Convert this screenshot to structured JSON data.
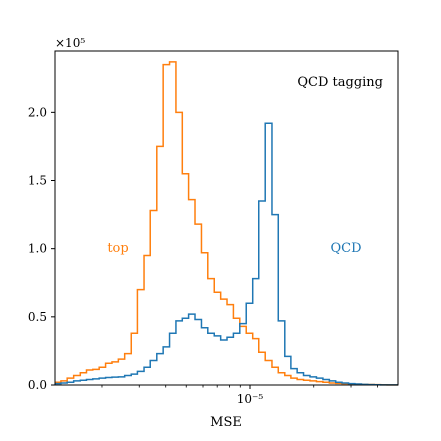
{
  "chart_data": {
    "type": "step-histogram",
    "title": "",
    "xlabel": "MSE",
    "ylabel": "",
    "y_scale_label": "×10⁵",
    "x_scale": "log",
    "xlim": [
      1.2e-06,
      5e-05
    ],
    "ylim": [
      0,
      245000
    ],
    "grid": false,
    "legend": "none",
    "annotations": {
      "panel_label": "QCD tagging",
      "top_label": "top",
      "qcd_label": "QCD"
    },
    "x_ticks": [
      {
        "value": 1e-05,
        "label": "10⁻⁵"
      }
    ],
    "y_ticks": [
      {
        "value": 0,
        "label": "0.0"
      },
      {
        "value": 50000,
        "label": "0.5"
      },
      {
        "value": 100000,
        "label": "1.0"
      },
      {
        "value": 150000,
        "label": "1.5"
      },
      {
        "value": 200000,
        "label": "2.0"
      }
    ],
    "bin_edges": [
      1.2e-06,
      1.28e-06,
      1.37e-06,
      1.47e-06,
      1.58e-06,
      1.69e-06,
      1.81e-06,
      1.94e-06,
      2.08e-06,
      2.23e-06,
      2.39e-06,
      2.56e-06,
      2.75e-06,
      2.94e-06,
      3.16e-06,
      3.38e-06,
      3.63e-06,
      3.89e-06,
      4.17e-06,
      4.47e-06,
      4.79e-06,
      5.13e-06,
      5.5e-06,
      5.9e-06,
      6.32e-06,
      6.78e-06,
      7.27e-06,
      7.79e-06,
      8.35e-06,
      8.95e-06,
      9.6e-06,
      1.03e-05,
      1.1e-05,
      1.18e-05,
      1.27e-05,
      1.36e-05,
      1.46e-05,
      1.56e-05,
      1.67e-05,
      1.79e-05,
      1.92e-05,
      2.06e-05,
      2.21e-05,
      2.37e-05,
      2.54e-05,
      2.72e-05,
      2.92e-05,
      3.13e-05,
      3.36e-05,
      3.6e-05,
      3.86e-05,
      4.14e-05,
      4.44e-05,
      4.76e-05,
      5e-05
    ],
    "series": [
      {
        "name": "",
        "color": "#ff7f0e",
        "values": [
          2000,
          3000,
          5000,
          7000,
          9000,
          11000,
          11500,
          13000,
          16000,
          17000,
          19000,
          23000,
          38000,
          70000,
          95000,
          128000,
          175000,
          235000,
          237000,
          200000,
          155000,
          136000,
          118000,
          97000,
          78000,
          68000,
          63000,
          59000,
          49000,
          43000,
          38000,
          34000,
          24000,
          18000,
          13000,
          9000,
          7000,
          5000,
          4000,
          3500,
          3000,
          2500,
          2000,
          1500,
          1200,
          1000,
          800,
          600,
          500,
          400,
          300,
          200,
          100,
          50
        ]
      },
      {
        "name": "",
        "color": "#1f77b4",
        "values": [
          1000,
          1500,
          2000,
          3000,
          3500,
          4000,
          4500,
          5000,
          5500,
          5800,
          6000,
          7000,
          8000,
          10000,
          13000,
          18000,
          23000,
          28000,
          38000,
          47000,
          49000,
          52000,
          48000,
          42000,
          38000,
          36000,
          33000,
          35000,
          38000,
          45000,
          60000,
          78000,
          135000,
          192000,
          125000,
          47000,
          21000,
          12000,
          9000,
          7000,
          6000,
          5000,
          4000,
          3000,
          2000,
          1500,
          1000,
          700,
          500,
          300,
          200,
          100,
          80,
          50
        ]
      }
    ]
  }
}
